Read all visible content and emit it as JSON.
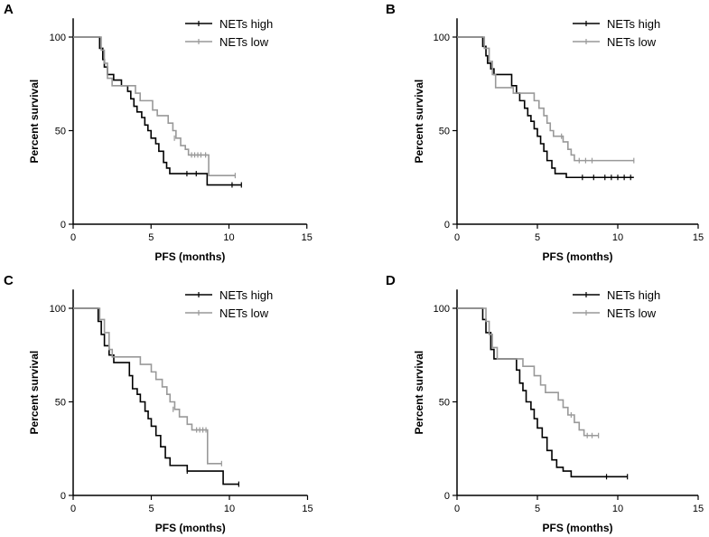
{
  "figure": {
    "xlabel": "PFS (months)",
    "ylabel": "Percent survival",
    "xticks": [
      "0",
      "5",
      "10",
      "15"
    ],
    "yticks": [
      "0",
      "50",
      "100"
    ]
  },
  "colors": {
    "high": "#000000",
    "low": "#999999"
  },
  "chart_data": [
    {
      "panel": "A",
      "type": "line",
      "xlim": [
        0,
        15
      ],
      "ylim": [
        0,
        110
      ],
      "xlabel": "PFS (months)",
      "ylabel": "Percent survival",
      "series": [
        {
          "name": "NETs high",
          "legend": "NETs high",
          "steps": [
            [
              0,
              100
            ],
            [
              1.5,
              100
            ],
            [
              1.7,
              94
            ],
            [
              1.9,
              88
            ],
            [
              2.0,
              84
            ],
            [
              2.2,
              80
            ],
            [
              2.6,
              77
            ],
            [
              3.1,
              74
            ],
            [
              3.5,
              71
            ],
            [
              3.7,
              67
            ],
            [
              3.9,
              63
            ],
            [
              4.1,
              60
            ],
            [
              4.4,
              57
            ],
            [
              4.6,
              53
            ],
            [
              4.8,
              50
            ],
            [
              5.0,
              46
            ],
            [
              5.3,
              43
            ],
            [
              5.5,
              39
            ],
            [
              5.8,
              33
            ],
            [
              6.0,
              30
            ],
            [
              6.2,
              27
            ],
            [
              7.2,
              27
            ],
            [
              8.6,
              27
            ],
            [
              8.6,
              21
            ],
            [
              10.8,
              21
            ]
          ],
          "censor": [
            [
              7.3,
              27
            ],
            [
              7.9,
              27
            ],
            [
              10.2,
              21
            ],
            [
              10.8,
              21
            ]
          ]
        },
        {
          "name": "NETs low",
          "legend": "NETs low",
          "steps": [
            [
              0,
              100
            ],
            [
              1.6,
              100
            ],
            [
              1.8,
              93
            ],
            [
              2.0,
              86
            ],
            [
              2.2,
              78
            ],
            [
              2.5,
              74
            ],
            [
              3.6,
              74
            ],
            [
              4.0,
              70
            ],
            [
              4.3,
              66
            ],
            [
              4.9,
              66
            ],
            [
              5.1,
              61
            ],
            [
              5.4,
              58
            ],
            [
              5.9,
              58
            ],
            [
              6.1,
              54
            ],
            [
              6.4,
              50
            ],
            [
              6.6,
              46
            ],
            [
              6.9,
              42
            ],
            [
              7.2,
              40
            ],
            [
              7.4,
              37
            ],
            [
              8.7,
              37
            ],
            [
              8.7,
              26
            ],
            [
              10.4,
              26
            ]
          ],
          "censor": [
            [
              6.5,
              46
            ],
            [
              7.6,
              37
            ],
            [
              7.8,
              37
            ],
            [
              8.0,
              37
            ],
            [
              8.2,
              37
            ],
            [
              8.5,
              37
            ],
            [
              10.4,
              26
            ]
          ]
        }
      ]
    },
    {
      "panel": "B",
      "type": "line",
      "xlim": [
        0,
        15
      ],
      "ylim": [
        0,
        110
      ],
      "xlabel": "PFS (months)",
      "ylabel": "Percent survival",
      "series": [
        {
          "name": "NETs high",
          "legend": "NETs high",
          "steps": [
            [
              0,
              100
            ],
            [
              1.4,
              100
            ],
            [
              1.6,
              95
            ],
            [
              1.8,
              90
            ],
            [
              1.9,
              86
            ],
            [
              2.1,
              83
            ],
            [
              2.3,
              80
            ],
            [
              3.2,
              80
            ],
            [
              3.4,
              74
            ],
            [
              3.7,
              70
            ],
            [
              3.9,
              66
            ],
            [
              4.2,
              62
            ],
            [
              4.4,
              58
            ],
            [
              4.6,
              55
            ],
            [
              4.8,
              51
            ],
            [
              5.0,
              47
            ],
            [
              5.2,
              43
            ],
            [
              5.4,
              39
            ],
            [
              5.6,
              34
            ],
            [
              5.9,
              30
            ],
            [
              6.1,
              27
            ],
            [
              6.6,
              27
            ],
            [
              6.8,
              25
            ],
            [
              11.0,
              25
            ]
          ],
          "censor": [
            [
              7.8,
              25
            ],
            [
              8.5,
              25
            ],
            [
              9.2,
              25
            ],
            [
              9.6,
              25
            ],
            [
              10.0,
              25
            ],
            [
              10.4,
              25
            ],
            [
              10.8,
              25
            ]
          ]
        },
        {
          "name": "NETs low",
          "legend": "NETs low",
          "steps": [
            [
              0,
              100
            ],
            [
              1.5,
              100
            ],
            [
              1.7,
              94
            ],
            [
              2.0,
              87
            ],
            [
              2.2,
              80
            ],
            [
              2.4,
              73
            ],
            [
              3.2,
              73
            ],
            [
              3.5,
              70
            ],
            [
              4.6,
              70
            ],
            [
              4.8,
              66
            ],
            [
              5.1,
              62
            ],
            [
              5.4,
              58
            ],
            [
              5.6,
              54
            ],
            [
              5.8,
              50
            ],
            [
              6.0,
              47
            ],
            [
              6.3,
              47
            ],
            [
              6.6,
              44
            ],
            [
              6.9,
              40
            ],
            [
              7.1,
              37
            ],
            [
              7.3,
              34
            ],
            [
              11.0,
              34
            ]
          ],
          "censor": [
            [
              6.5,
              47
            ],
            [
              7.6,
              34
            ],
            [
              8.0,
              34
            ],
            [
              8.4,
              34
            ],
            [
              11.0,
              34
            ]
          ]
        }
      ]
    },
    {
      "panel": "C",
      "type": "line",
      "xlim": [
        0,
        15
      ],
      "ylim": [
        0,
        110
      ],
      "xlabel": "PFS (months)",
      "ylabel": "Percent survival",
      "series": [
        {
          "name": "NETs high",
          "legend": "NETs high",
          "steps": [
            [
              0,
              100
            ],
            [
              1.4,
              100
            ],
            [
              1.6,
              93
            ],
            [
              1.8,
              86
            ],
            [
              2.0,
              80
            ],
            [
              2.3,
              75
            ],
            [
              2.6,
              71
            ],
            [
              3.4,
              71
            ],
            [
              3.6,
              64
            ],
            [
              3.8,
              57
            ],
            [
              4.1,
              54
            ],
            [
              4.3,
              50
            ],
            [
              4.6,
              45
            ],
            [
              4.8,
              41
            ],
            [
              5.0,
              37
            ],
            [
              5.3,
              32
            ],
            [
              5.6,
              26
            ],
            [
              5.9,
              20
            ],
            [
              6.2,
              16
            ],
            [
              7.1,
              16
            ],
            [
              7.3,
              13
            ],
            [
              9.6,
              13
            ],
            [
              9.6,
              6
            ],
            [
              10.6,
              6
            ]
          ],
          "censor": [
            [
              7.3,
              13
            ],
            [
              10.6,
              6
            ]
          ]
        },
        {
          "name": "NETs low",
          "legend": "NETs low",
          "steps": [
            [
              0,
              100
            ],
            [
              1.5,
              100
            ],
            [
              1.7,
              94
            ],
            [
              2.0,
              87
            ],
            [
              2.3,
              78
            ],
            [
              2.5,
              74
            ],
            [
              4.1,
              74
            ],
            [
              4.3,
              70
            ],
            [
              4.8,
              70
            ],
            [
              5.0,
              66
            ],
            [
              5.3,
              62
            ],
            [
              5.7,
              58
            ],
            [
              6.0,
              54
            ],
            [
              6.2,
              50
            ],
            [
              6.5,
              46
            ],
            [
              6.8,
              42
            ],
            [
              7.3,
              38
            ],
            [
              7.6,
              35
            ],
            [
              8.6,
              35
            ],
            [
              8.6,
              17
            ],
            [
              9.5,
              17
            ]
          ],
          "censor": [
            [
              6.4,
              46
            ],
            [
              7.9,
              35
            ],
            [
              8.1,
              35
            ],
            [
              8.3,
              35
            ],
            [
              8.5,
              35
            ],
            [
              9.5,
              17
            ]
          ]
        }
      ]
    },
    {
      "panel": "D",
      "type": "line",
      "xlim": [
        0,
        15
      ],
      "ylim": [
        0,
        110
      ],
      "xlabel": "PFS (months)",
      "ylabel": "Percent survival",
      "series": [
        {
          "name": "NETs high",
          "legend": "NETs high",
          "steps": [
            [
              0,
              100
            ],
            [
              1.4,
              100
            ],
            [
              1.6,
              94
            ],
            [
              1.8,
              87
            ],
            [
              2.1,
              78
            ],
            [
              2.3,
              73
            ],
            [
              3.5,
              73
            ],
            [
              3.7,
              67
            ],
            [
              3.9,
              60
            ],
            [
              4.1,
              56
            ],
            [
              4.3,
              50
            ],
            [
              4.6,
              46
            ],
            [
              4.8,
              41
            ],
            [
              5.0,
              36
            ],
            [
              5.3,
              31
            ],
            [
              5.6,
              24
            ],
            [
              5.9,
              19
            ],
            [
              6.2,
              15
            ],
            [
              6.6,
              13
            ],
            [
              7.1,
              13
            ],
            [
              7.1,
              10
            ],
            [
              10.6,
              10
            ]
          ],
          "censor": [
            [
              9.3,
              10
            ],
            [
              10.6,
              10
            ]
          ]
        },
        {
          "name": "NETs low",
          "legend": "NETs low",
          "steps": [
            [
              0,
              100
            ],
            [
              1.5,
              100
            ],
            [
              1.8,
              93
            ],
            [
              2.0,
              86
            ],
            [
              2.2,
              79
            ],
            [
              2.5,
              73
            ],
            [
              3.8,
              73
            ],
            [
              4.1,
              69
            ],
            [
              4.5,
              69
            ],
            [
              4.8,
              64
            ],
            [
              5.2,
              59
            ],
            [
              5.5,
              55
            ],
            [
              6.1,
              55
            ],
            [
              6.3,
              51
            ],
            [
              6.6,
              47
            ],
            [
              6.9,
              43
            ],
            [
              7.3,
              39
            ],
            [
              7.6,
              35
            ],
            [
              7.9,
              32
            ],
            [
              8.8,
              32
            ]
          ],
          "censor": [
            [
              7.1,
              43
            ],
            [
              8.1,
              32
            ],
            [
              8.4,
              32
            ],
            [
              8.8,
              32
            ]
          ]
        }
      ]
    }
  ]
}
